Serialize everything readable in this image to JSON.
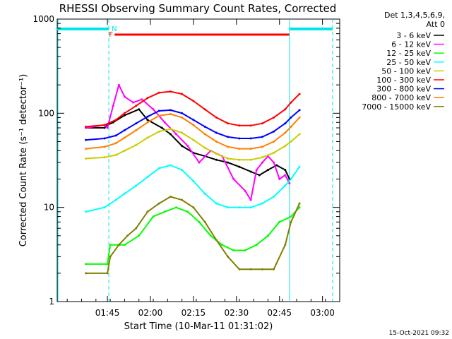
{
  "chart_data": {
    "type": "line",
    "title": "RHESSI Observing Summary Count Rates, Corrected",
    "xlabel": "Start Time (10-Mar-11 01:31:02)",
    "ylabel": "Corrected Count Rate (s⁻¹ detector⁻¹)",
    "y_scale": "log",
    "ylim": [
      1,
      1000
    ],
    "xlim_minutes_since_start": [
      -3.5,
      95
    ],
    "x_ticks": [
      {
        "minute": 14,
        "label": "01:45"
      },
      {
        "minute": 29,
        "label": "02:00"
      },
      {
        "minute": 44,
        "label": "02:15"
      },
      {
        "minute": 59,
        "label": "02:30"
      },
      {
        "minute": 74,
        "label": "02:45"
      },
      {
        "minute": 89,
        "label": "03:00"
      }
    ],
    "y_ticks": [
      {
        "value": 1,
        "label": "1"
      },
      {
        "value": 10,
        "label": "10"
      },
      {
        "value": 100,
        "label": "100"
      },
      {
        "value": 1000,
        "label": "1000"
      }
    ],
    "legend_header": [
      "Det 1,3,4,5,6,9,",
      "Att 0"
    ],
    "footer_date": "15-Oct-2021 09:32",
    "markers": {
      "flag_F_label": "F",
      "flag_N_label": "N",
      "night_segments_minutes": [
        [
          -3.5,
          14.5
        ],
        [
          77.5,
          92.5
        ]
      ],
      "flare_segment_minutes": [
        16.5,
        77.5
      ],
      "night_boundaries_minutes": [
        -3.5,
        14.5,
        77.5,
        92.5
      ]
    },
    "series": [
      {
        "name": "3 - 6 keV",
        "color": "#000000",
        "x": [
          6.5,
          13,
          14,
          16,
          20,
          25,
          28,
          33,
          36,
          40,
          44,
          48,
          52,
          56,
          60,
          64,
          67,
          70,
          73,
          76,
          77.5
        ],
        "y": [
          70,
          70,
          75,
          80,
          95,
          110,
          85,
          70,
          60,
          45,
          38,
          35,
          32,
          30,
          27,
          24,
          22,
          25,
          28,
          25,
          20
        ]
      },
      {
        "name": "6 - 12 keV",
        "color": "#ff00ff",
        "x": [
          6.5,
          13,
          14,
          16,
          18,
          20,
          23,
          26,
          30,
          34,
          38,
          42,
          46,
          50,
          54,
          58,
          62,
          64,
          66,
          68,
          70,
          72,
          74,
          76,
          77.5
        ],
        "y": [
          70,
          75,
          70,
          120,
          200,
          150,
          130,
          140,
          110,
          80,
          60,
          45,
          30,
          40,
          35,
          20,
          15,
          12,
          25,
          30,
          35,
          30,
          20,
          22,
          18
        ]
      },
      {
        "name": "12 - 25 keV",
        "color": "#00ff00",
        "x": [
          6.5,
          14,
          15,
          20,
          25,
          30,
          34,
          38,
          42,
          46,
          50,
          54,
          58,
          62,
          66,
          70,
          74,
          78,
          81
        ],
        "y": [
          2.5,
          2.5,
          4,
          4,
          5,
          8,
          9,
          10,
          9,
          7,
          5,
          4,
          3.5,
          3.5,
          4,
          5,
          7,
          8,
          10
        ]
      },
      {
        "name": "25 - 50 keV",
        "color": "#00ffff",
        "x": [
          6.5,
          13,
          17,
          20,
          24,
          28,
          32,
          36,
          40,
          44,
          48,
          52,
          56,
          60,
          64,
          68,
          72,
          76,
          78,
          81
        ],
        "y": [
          9,
          10,
          12,
          14,
          17,
          21,
          26,
          28,
          25,
          19,
          14,
          11,
          10,
          10,
          10,
          11,
          13,
          17,
          20,
          27
        ]
      },
      {
        "name": "50 - 100 keV",
        "color": "#cccc00",
        "x": [
          6.5,
          13,
          17,
          20,
          24,
          28,
          32,
          36,
          40,
          44,
          48,
          52,
          56,
          60,
          64,
          68,
          72,
          76,
          78,
          81
        ],
        "y": [
          33,
          34,
          36,
          40,
          46,
          55,
          64,
          68,
          62,
          52,
          43,
          37,
          33,
          32,
          32,
          34,
          38,
          45,
          50,
          60
        ]
      },
      {
        "name": "100 - 300 keV",
        "color": "#ff0000",
        "x": [
          6.5,
          13,
          17,
          20,
          24,
          28,
          32,
          36,
          40,
          44,
          48,
          52,
          56,
          60,
          64,
          68,
          72,
          76,
          78,
          81
        ],
        "y": [
          72,
          75,
          85,
          100,
          120,
          145,
          165,
          170,
          160,
          135,
          110,
          90,
          78,
          74,
          74,
          78,
          90,
          110,
          130,
          160
        ]
      },
      {
        "name": "300 - 800 keV",
        "color": "#0000ff",
        "x": [
          6.5,
          13,
          17,
          20,
          24,
          28,
          32,
          36,
          40,
          44,
          48,
          52,
          56,
          60,
          64,
          68,
          72,
          76,
          78,
          81
        ],
        "y": [
          52,
          54,
          58,
          66,
          78,
          92,
          106,
          108,
          100,
          85,
          72,
          62,
          56,
          54,
          54,
          56,
          64,
          78,
          90,
          108
        ]
      },
      {
        "name": "800 - 7000 keV",
        "color": "#ff8000",
        "x": [
          6.5,
          13,
          17,
          20,
          24,
          28,
          32,
          36,
          40,
          44,
          48,
          52,
          56,
          60,
          64,
          68,
          72,
          76,
          78,
          81
        ],
        "y": [
          42,
          44,
          48,
          55,
          66,
          80,
          94,
          98,
          90,
          75,
          60,
          50,
          44,
          42,
          42,
          44,
          50,
          62,
          72,
          90
        ]
      },
      {
        "name": "7000 - 15000 keV",
        "color": "#808000",
        "x": [
          6.5,
          14,
          15,
          18,
          21,
          24,
          28,
          32,
          36,
          40,
          44,
          48,
          52,
          56,
          60,
          64,
          68,
          72,
          76,
          78,
          81
        ],
        "y": [
          2,
          2,
          3,
          4,
          5,
          6,
          9,
          11,
          13,
          12,
          10,
          7,
          4.5,
          3,
          2.2,
          2.2,
          2.2,
          2.2,
          4,
          7,
          11
        ]
      }
    ]
  }
}
